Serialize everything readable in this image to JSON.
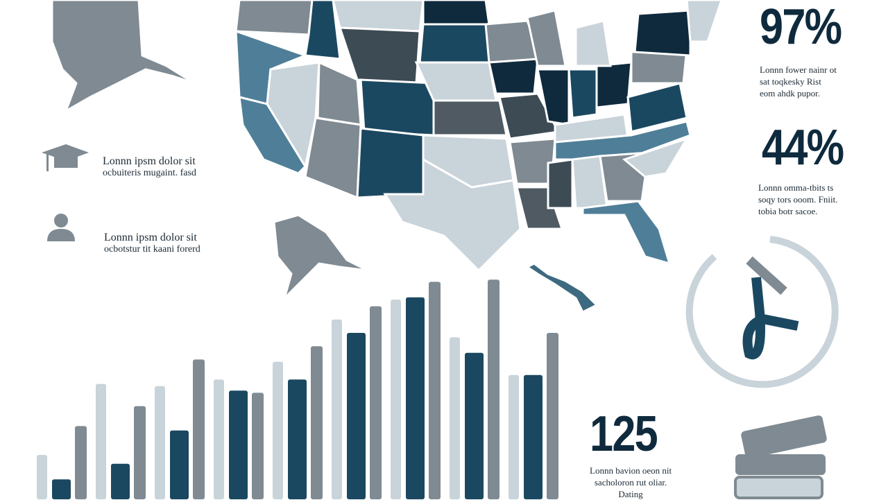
{
  "stats": [
    {
      "value": "97%",
      "lines": [
        "Lonnn fower nainr ot",
        "sat toqkesky Rist",
        "eom ahdk pupor."
      ]
    },
    {
      "value": "44%",
      "lines": [
        "Lonnn omma-tbits ts",
        "soqy tors ooom. Fniit.",
        "tobia botr sacoe."
      ]
    },
    {
      "value": "125",
      "lines": [
        "Lonnn bavion oeon nit",
        "sacholoron rut oliar.",
        "Dating"
      ]
    }
  ],
  "features": [
    {
      "title": "Lonnn ipsm dolor sit",
      "text": "ocbuiteris mugaint. fasd"
    },
    {
      "title": "Lonnn ipsm dolor sit",
      "text": "ocbotstur tit kaani forerd"
    }
  ],
  "chart_data": {
    "type": "bar",
    "categories": [
      null,
      null,
      null,
      null,
      null,
      null,
      null,
      null,
      null
    ],
    "ylim": [
      0,
      100
    ],
    "series": [
      {
        "color": "#c9d3da",
        "values": [
          20,
          52,
          51,
          54,
          62,
          81,
          90,
          73,
          56
        ]
      },
      {
        "color": "#1b4861",
        "values": [
          9,
          16,
          31,
          49,
          54,
          75,
          91,
          66,
          56
        ]
      },
      {
        "color": "#7f8a92",
        "values": [
          33,
          42,
          63,
          48,
          69,
          87,
          98,
          99,
          75
        ]
      }
    ]
  }
}
